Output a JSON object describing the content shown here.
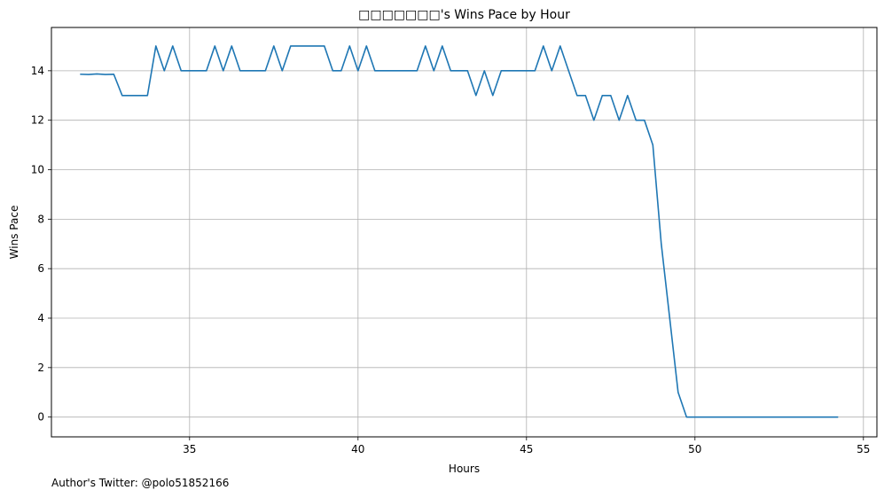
{
  "chart_data": {
    "type": "line",
    "title": "□□□□□□□'s Wins Pace by Hour",
    "xlabel": "Hours",
    "ylabel": "Wins Pace",
    "xlim": [
      30.9,
      55.4
    ],
    "ylim": [
      -0.8,
      15.75
    ],
    "xticks": [
      35,
      40,
      45,
      50,
      55
    ],
    "yticks": [
      0,
      2,
      4,
      6,
      8,
      10,
      12,
      14
    ],
    "grid": true,
    "colors": {
      "line": "#1f77b4",
      "grid": "#b0b0b0",
      "axes": "#000000"
    },
    "series": [
      {
        "x": [
          31.75,
          32.0,
          32.25,
          32.5,
          32.75,
          33.0,
          33.25,
          33.5,
          33.75,
          34.0,
          34.25,
          34.5,
          34.75,
          35.0,
          35.25,
          35.5,
          35.75,
          36.0,
          36.25,
          36.5,
          36.75,
          37.0,
          37.25,
          37.5,
          37.75,
          38.0,
          38.25,
          38.5,
          38.75,
          39.0,
          39.25,
          39.5,
          39.75,
          40.0,
          40.25,
          40.5,
          40.75,
          41.0,
          41.25,
          41.5,
          41.75,
          42.0,
          42.25,
          42.5,
          42.75,
          43.0,
          43.25,
          43.5,
          43.75,
          44.0,
          44.25,
          44.5,
          44.75,
          45.0,
          45.25,
          45.5,
          45.75,
          46.0,
          46.25,
          46.5,
          46.75,
          47.0,
          47.25,
          47.5,
          47.75,
          48.0,
          48.25,
          48.5,
          48.75,
          49.0,
          49.25,
          49.5,
          49.75,
          50.0,
          50.5,
          51.0,
          51.5,
          52.0,
          52.5,
          53.0,
          53.5,
          54.0,
          54.25
        ],
        "y": [
          13.86,
          13.85,
          13.87,
          13.85,
          13.86,
          13.0,
          13.0,
          13.0,
          13.0,
          15.0,
          14.0,
          15.0,
          14.0,
          14.0,
          14.0,
          14.0,
          15.0,
          14.0,
          15.0,
          14.0,
          14.0,
          14.0,
          14.0,
          15.0,
          14.0,
          15.0,
          15.0,
          15.0,
          15.0,
          15.0,
          14.0,
          14.0,
          15.0,
          14.0,
          15.0,
          14.0,
          14.0,
          14.0,
          14.0,
          14.0,
          14.0,
          15.0,
          14.0,
          15.0,
          14.0,
          14.0,
          14.0,
          13.0,
          14.0,
          13.0,
          14.0,
          14.0,
          14.0,
          14.0,
          14.0,
          15.0,
          14.0,
          15.0,
          14.0,
          13.0,
          13.0,
          12.0,
          13.0,
          13.0,
          12.0,
          13.0,
          12.0,
          12.0,
          11.0,
          7.0,
          4.0,
          1.0,
          0.0,
          0.0,
          0.0,
          0.0,
          0.0,
          0.0,
          0.0,
          0.0,
          0.0,
          0.0,
          0.0
        ]
      }
    ]
  },
  "footer": {
    "text": "Author's Twitter: @polo51852166"
  }
}
